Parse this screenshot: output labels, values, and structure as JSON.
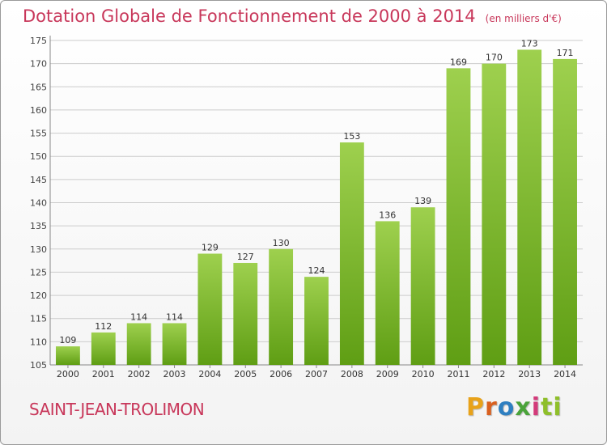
{
  "title": "Dotation Globale de Fonctionnement de 2000 à 2014",
  "unit": "(en milliers d'€)",
  "commune": "SAINT-JEAN-TROLIMON",
  "logo": [
    "P",
    "r",
    "o",
    "x",
    "i",
    "ti"
  ],
  "colors": {
    "title": "#c8375a",
    "bar_top": "#9ed04e",
    "bar_bottom": "#5f9e14",
    "grid": "#cccccc"
  },
  "chart_data": {
    "type": "bar",
    "categories": [
      "2000",
      "2001",
      "2002",
      "2003",
      "2004",
      "2005",
      "2006",
      "2007",
      "2008",
      "2009",
      "2010",
      "2011",
      "2012",
      "2013",
      "2014"
    ],
    "values": [
      109,
      112,
      114,
      114,
      129,
      127,
      130,
      124,
      153,
      136,
      139,
      169,
      170,
      173,
      171
    ],
    "ylim": [
      105,
      175
    ],
    "yticks": [
      105,
      110,
      115,
      120,
      125,
      130,
      135,
      140,
      145,
      150,
      155,
      160,
      165,
      170,
      175
    ],
    "grid": true,
    "legend": "none"
  }
}
